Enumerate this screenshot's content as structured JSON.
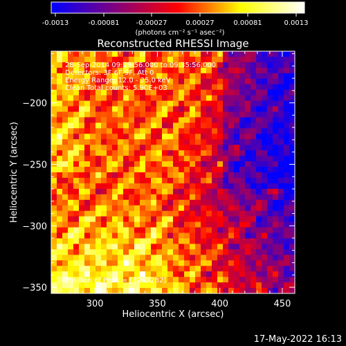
{
  "chart_data": {
    "type": "heatmap",
    "title": "Reconstructed RHESSI Image",
    "xlabel": "Heliocentric X (arcsec)",
    "ylabel": "Heliocentric Y (arcsec)",
    "xlim": [
      265,
      460
    ],
    "ylim": [
      -355,
      -158
    ],
    "xticks": [
      300,
      350,
      400,
      450
    ],
    "yticks": [
      -200,
      -250,
      -300,
      -350
    ],
    "colorbar": {
      "range": [
        -0.0013,
        0.0013
      ],
      "tick_labels": [
        "-0.0013",
        "-0.00081",
        "-0.00027",
        "0.00027",
        "0.00081",
        "0.0013"
      ],
      "unit_label": "(photons cm⁻² s⁻¹ asec⁻²)",
      "colors": [
        "#0000ff",
        "#ff0000",
        "#ffff00",
        "#ffffff"
      ]
    },
    "info_lines": [
      "28-Sep-2014 09:29:56.000 to 09:35:56.000",
      "Detectors: 3F 6F 9F, Att 0",
      "Energy Range: 12.0 - 25.0 keV",
      "Clean     Total counts: 5.90E+03"
    ],
    "peak_label": "Position of Peak = [324,-282]",
    "peak": [
      324,
      -282
    ]
  },
  "footer": {
    "date": "17-May-2022 16:13"
  }
}
